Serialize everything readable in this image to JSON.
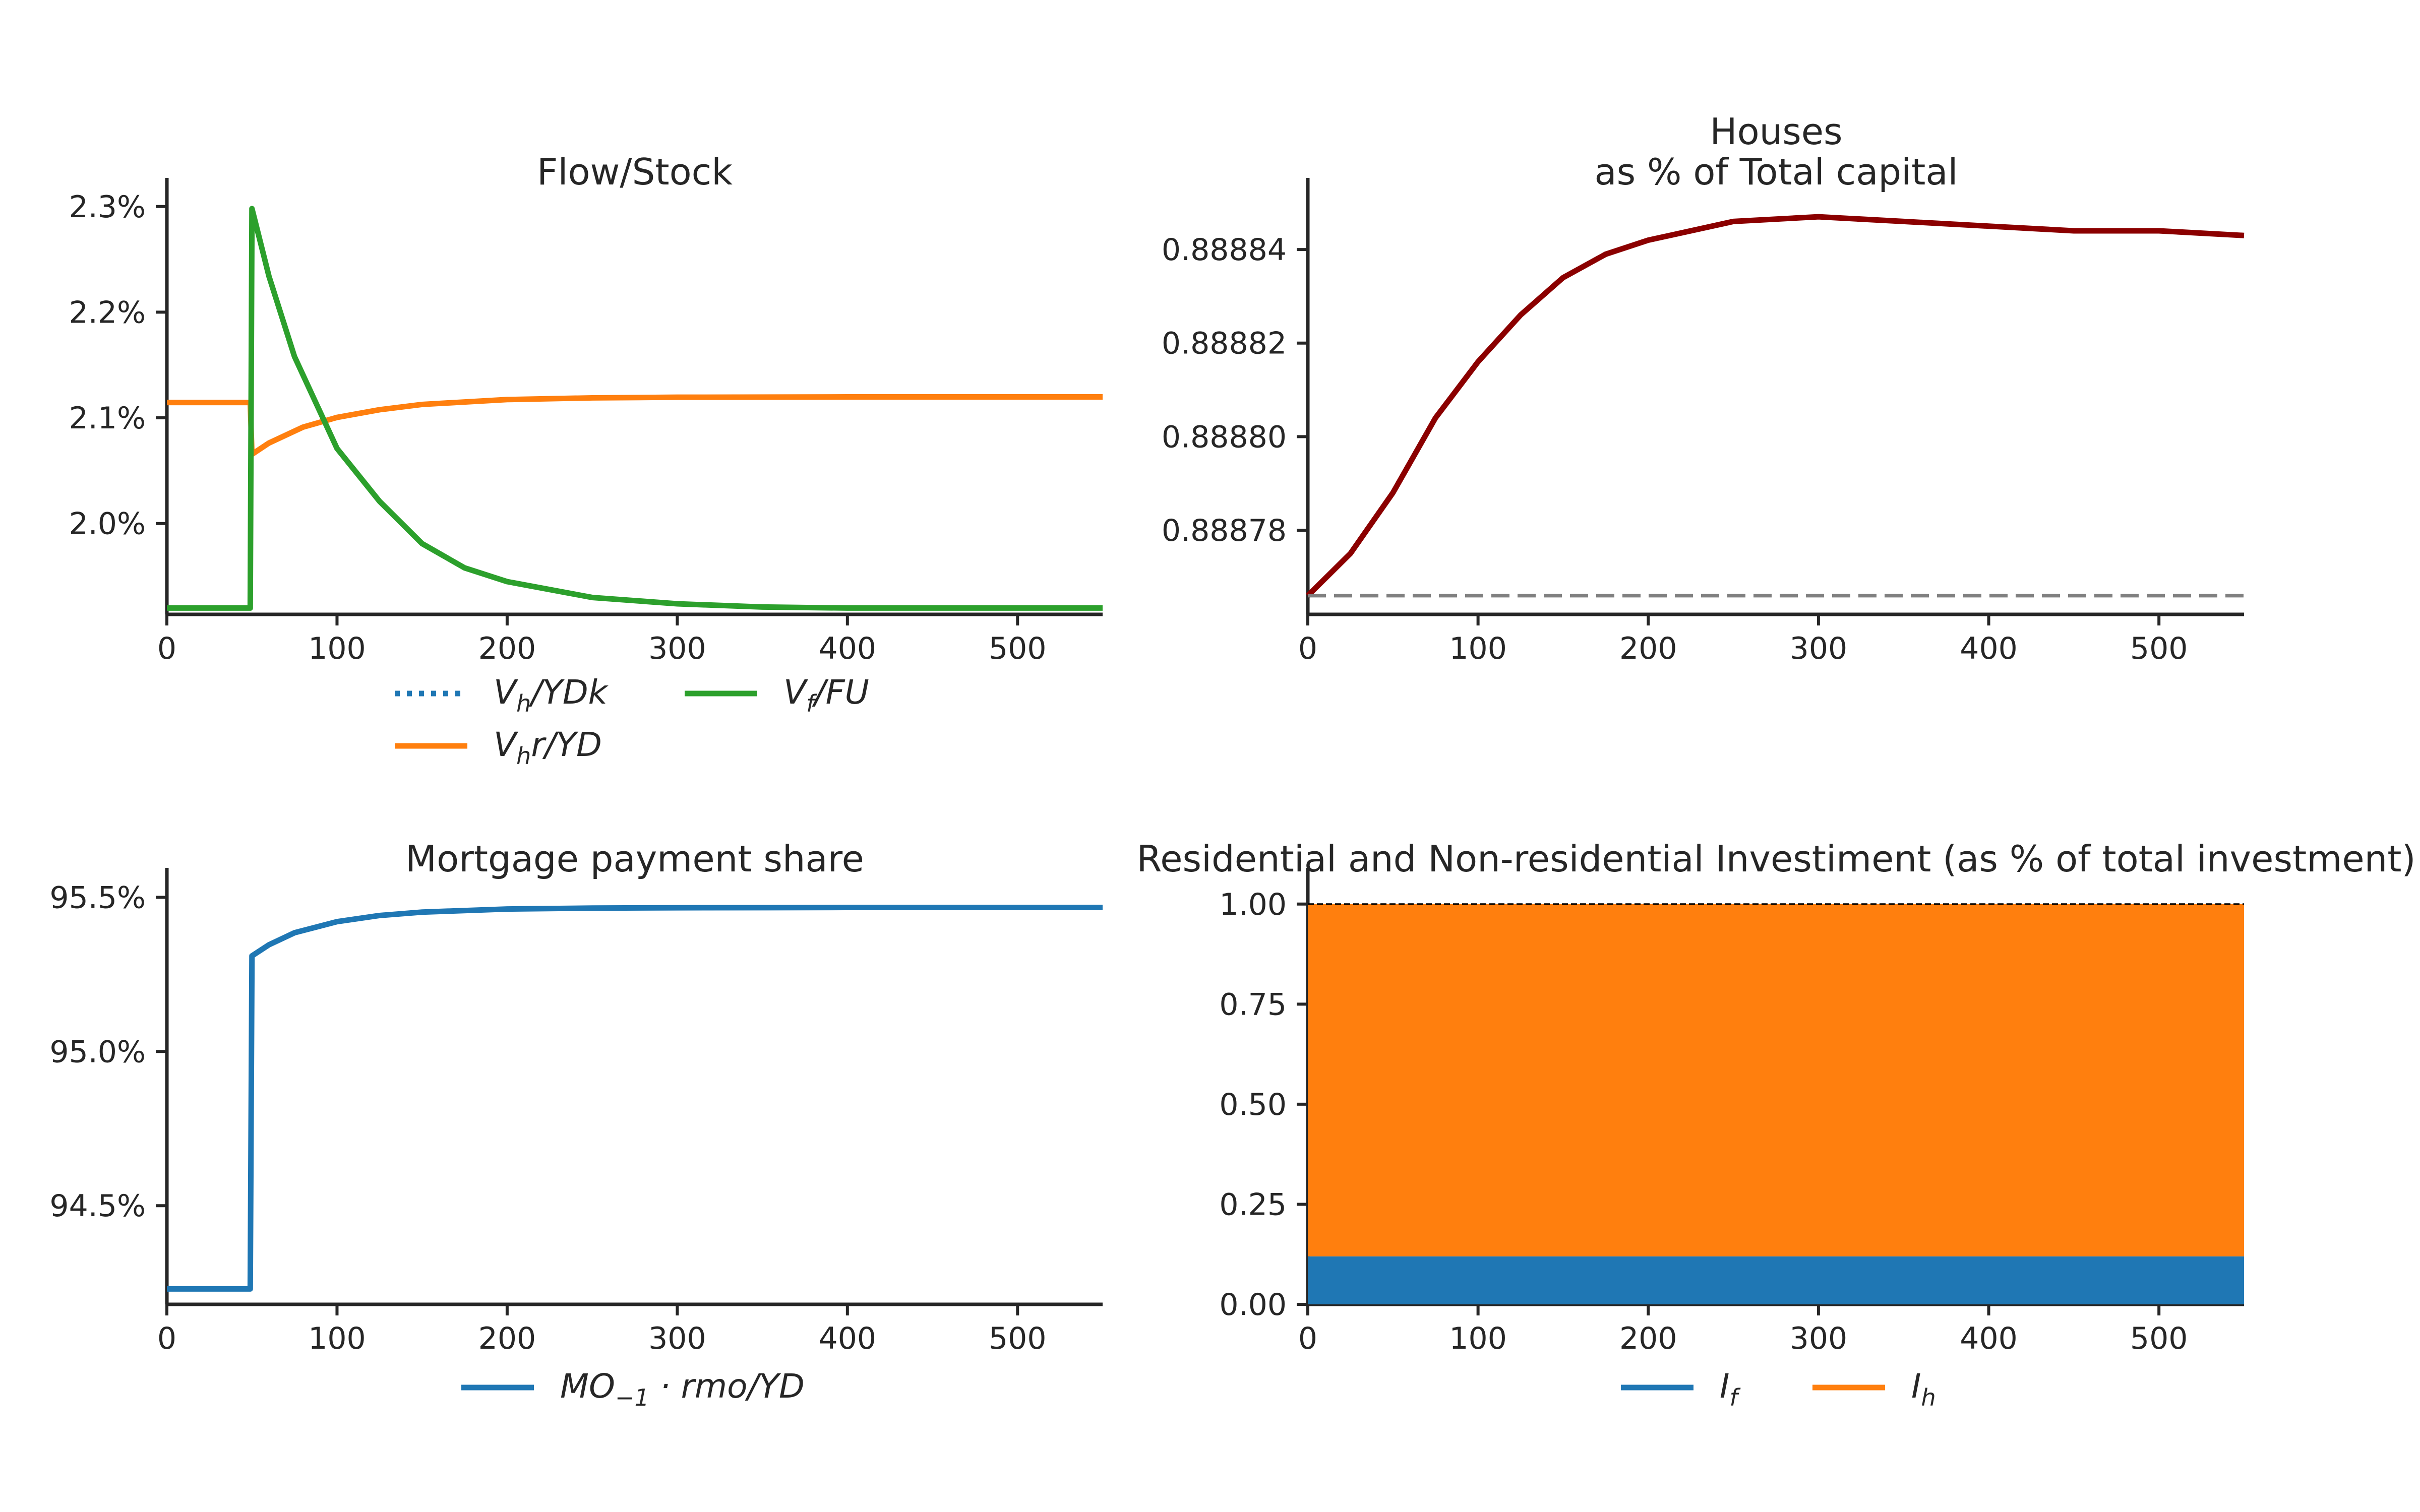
{
  "chart_data": [
    {
      "type": "line",
      "title": "Flow/Stock",
      "xlim": [
        0,
        550
      ],
      "ylim": [
        1.914,
        2.308
      ],
      "xticks": [
        "0",
        "100",
        "200",
        "300",
        "400",
        "500"
      ],
      "yticks": [
        "2.0%",
        "2.1%",
        "2.2%",
        "2.3%"
      ],
      "legend": {
        "placement": "bottom",
        "columns": 2
      },
      "series": [
        {
          "name": "Vh/YDk",
          "color": "#1f77b4",
          "style": "dotted",
          "x": [],
          "y": []
        },
        {
          "name": "Vhr/YD",
          "color": "#ff7f0e",
          "style": "solid",
          "x": [
            0,
            49,
            50,
            60,
            80,
            100,
            125,
            150,
            200,
            250,
            300,
            400,
            550
          ],
          "y": [
            2.1145,
            2.1145,
            2.0655,
            2.0762,
            2.0912,
            2.1004,
            2.1077,
            2.1127,
            2.1173,
            2.1189,
            2.1195,
            2.1198,
            2.1198
          ]
        },
        {
          "name": "Vf/FU",
          "color": "#2ca02c",
          "style": "solid",
          "x": [
            0,
            49,
            50,
            60,
            75,
            100,
            125,
            150,
            175,
            200,
            250,
            300,
            350,
            400,
            550
          ],
          "y": [
            1.92,
            1.92,
            2.298,
            2.234,
            2.158,
            2.071,
            2.021,
            1.981,
            1.958,
            1.945,
            1.93,
            1.924,
            1.921,
            1.92,
            1.92
          ]
        }
      ],
      "legend_labels": [
        {
          "base": "V",
          "sub": "h",
          "rest": "/YDk"
        },
        {
          "base": "V",
          "sub": "f",
          "rest": "/FU"
        },
        {
          "base": "V",
          "sub": "h",
          "rest": "r/YD"
        }
      ]
    },
    {
      "type": "line",
      "title": "Houses",
      "subtitle": "as % of Total capital",
      "xlim": [
        0,
        550
      ],
      "ylim": [
        0.888762,
        0.888851
      ],
      "xticks": [
        "0",
        "100",
        "200",
        "300",
        "400",
        "500"
      ],
      "yticks": [
        "0.88878",
        "0.88880",
        "0.88882",
        "0.88884"
      ],
      "series": [
        {
          "name": "",
          "color": "#8b0000",
          "style": "solid",
          "x": [
            0,
            25,
            50,
            75,
            100,
            125,
            150,
            175,
            200,
            250,
            300,
            350,
            400,
            450,
            500,
            550
          ],
          "y": [
            0.888766,
            0.888775,
            0.888788,
            0.888804,
            0.888816,
            0.888826,
            0.888834,
            0.888839,
            0.888842,
            0.888846,
            0.888847,
            0.888846,
            0.888845,
            0.888844,
            0.888844,
            0.888843
          ]
        },
        {
          "name": "",
          "color": "#808080",
          "style": "dashed",
          "x": [
            0,
            550
          ],
          "y": [
            0.888766,
            0.888766
          ]
        }
      ]
    },
    {
      "type": "line",
      "title": "Mortgage payment share",
      "xlim": [
        0,
        550
      ],
      "ylim": [
        94.18,
        95.53
      ],
      "xticks": [
        "0",
        "100",
        "200",
        "300",
        "400",
        "500"
      ],
      "yticks": [
        "94.5%",
        "95.0%",
        "95.5%"
      ],
      "legend": {
        "placement": "bottom",
        "columns": 1
      },
      "series": [
        {
          "name": "MO-1 · rmo/YD",
          "color": "#1f77b4",
          "style": "solid",
          "x": [
            0,
            49,
            50,
            60,
            75,
            100,
            125,
            150,
            200,
            250,
            300,
            400,
            550
          ],
          "y": [
            94.23,
            94.23,
            95.31,
            95.346,
            95.385,
            95.421,
            95.441,
            95.452,
            95.462,
            95.465,
            95.466,
            95.467,
            95.467
          ]
        }
      ],
      "legend_labels": [
        {
          "base": "MO",
          "sub": "−1",
          "rest": " · rmo/YD"
        }
      ]
    },
    {
      "type": "area",
      "title": "Residential and Non-residential Investiment (as % of total investment)",
      "xlim": [
        0,
        550
      ],
      "ylim": [
        0,
        1.04
      ],
      "xticks": [
        "0",
        "100",
        "200",
        "300",
        "400",
        "500"
      ],
      "yticks": [
        "0.00",
        "0.25",
        "0.50",
        "0.75",
        "1.00"
      ],
      "legend": {
        "placement": "bottom",
        "columns": 2
      },
      "series": [
        {
          "name": "If",
          "color": "#1f77b4",
          "stacked": true,
          "x": [
            0,
            550
          ],
          "values": [
            0.12,
            0.12
          ]
        },
        {
          "name": "Ih",
          "color": "#ff7f0e",
          "stacked": true,
          "x": [
            0,
            550
          ],
          "values": [
            0.88,
            0.88
          ]
        }
      ],
      "reference_line": {
        "y": 1.0,
        "color": "#000000",
        "style": "dashed"
      },
      "legend_labels": [
        {
          "base": "I",
          "sub": "f",
          "rest": ""
        },
        {
          "base": "I",
          "sub": "h",
          "rest": ""
        }
      ]
    }
  ]
}
